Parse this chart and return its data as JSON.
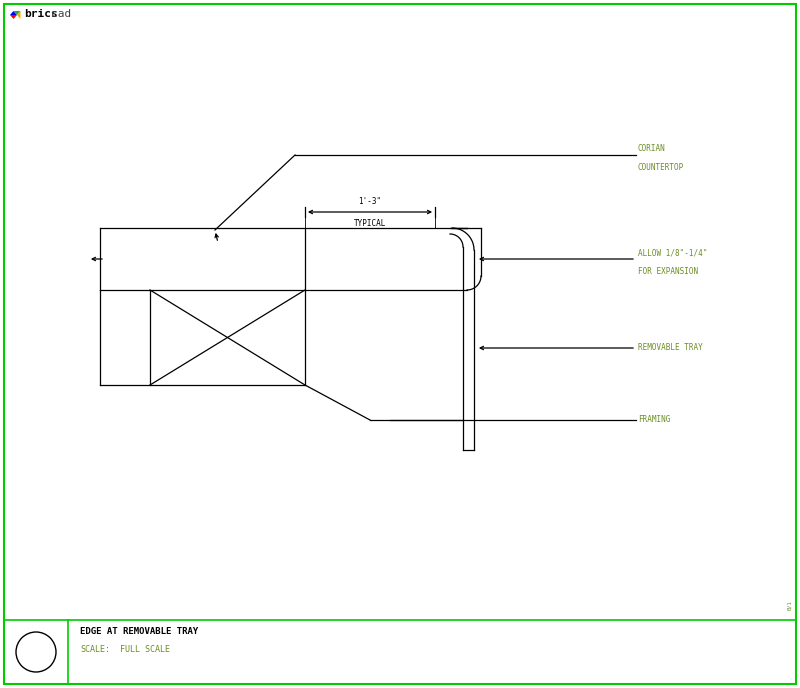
{
  "bg_color": "#ffffff",
  "border_color": "#00cc00",
  "line_color": "#000000",
  "label_color": "#6b8e23",
  "title_color": "#000000",
  "logo_text": "bricscad",
  "drawing_title": "EDGE AT REMOVABLE TRAY",
  "scale_label": "SCALE:",
  "scale_value": "FULL SCALE",
  "dim_label": "1'-3\"",
  "dim_sublabel": "TYPICAL",
  "label_corian1": "CORIAN",
  "label_corian2": "COUNTERTOP",
  "label_allow1": "ALLOW 1/8\"-1/4\"",
  "label_allow2": "FOR EXPANSION",
  "label_removable": "REMOVABLE TRAY",
  "label_framing": "FRAMING"
}
